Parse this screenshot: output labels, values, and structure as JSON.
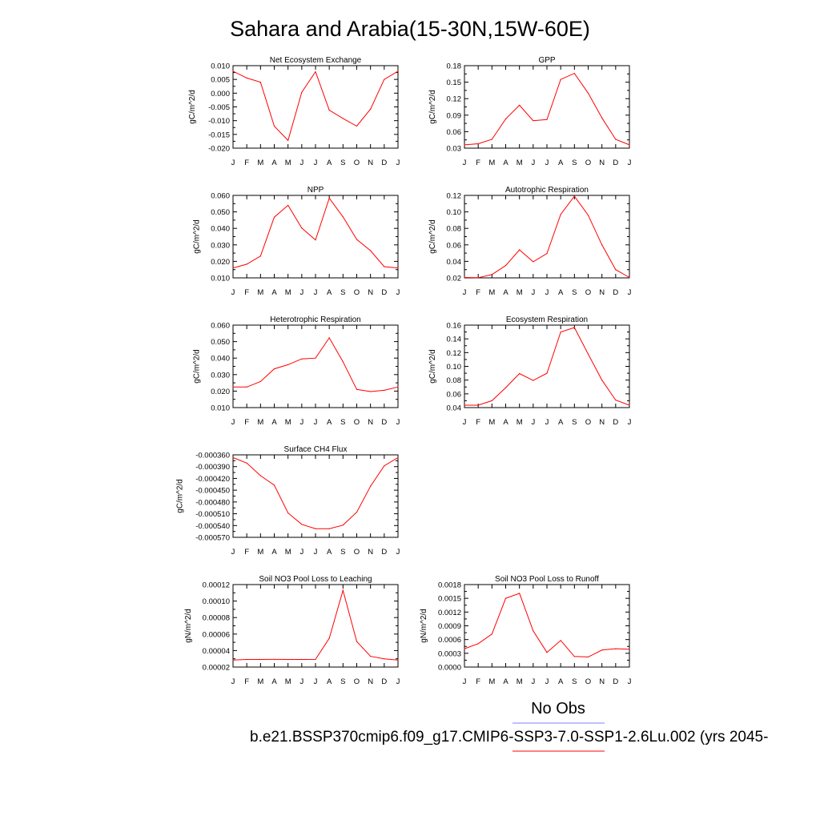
{
  "title": "Sahara and Arabia(15-30N,15W-60E)",
  "legend": {
    "obs_label": "No Obs",
    "obs_color": "#8080ff",
    "model_label": "b.e21.BSSP370cmip6.f09_g17.CMIP6-SSP3-7.0-SSP1-2.6Lu.002 (yrs 2045-",
    "model_color": "#ff0000"
  },
  "line_color": "#ff0000",
  "chart_data": [
    {
      "type": "line",
      "title": "Net Ecosystem Exchange",
      "ylabel": "gC/m^2/d",
      "x": [
        "J",
        "F",
        "M",
        "A",
        "M",
        "J",
        "J",
        "A",
        "S",
        "O",
        "N",
        "D",
        "J"
      ],
      "ylim": [
        -0.02,
        0.01
      ],
      "yticks": [
        "0.010",
        "0.005",
        "0.000",
        "-0.005",
        "-0.010",
        "-0.015",
        "-0.020"
      ],
      "series": [
        {
          "values": [
            0.008,
            0.0055,
            0.004,
            -0.012,
            -0.0172,
            0.0003,
            0.0078,
            -0.0062,
            -0.0092,
            -0.012,
            -0.0058,
            0.005,
            0.008
          ]
        }
      ]
    },
    {
      "type": "line",
      "title": "GPP",
      "ylabel": "gC/m^2/d",
      "x": [
        "J",
        "F",
        "M",
        "A",
        "M",
        "J",
        "J",
        "A",
        "S",
        "O",
        "N",
        "D",
        "J"
      ],
      "ylim": [
        0.03,
        0.18
      ],
      "yticks": [
        "0.18",
        "0.15",
        "0.12",
        "0.09",
        "0.06",
        "0.03"
      ],
      "series": [
        {
          "values": [
            0.036,
            0.038,
            0.046,
            0.083,
            0.108,
            0.08,
            0.082,
            0.155,
            0.166,
            0.13,
            0.085,
            0.046,
            0.036
          ]
        }
      ]
    },
    {
      "type": "line",
      "title": "NPP",
      "ylabel": "gC/m^2/d",
      "x": [
        "J",
        "F",
        "M",
        "A",
        "M",
        "J",
        "J",
        "A",
        "S",
        "O",
        "N",
        "D",
        "J"
      ],
      "ylim": [
        0.01,
        0.06
      ],
      "yticks": [
        "0.060",
        "0.050",
        "0.040",
        "0.030",
        "0.020",
        "0.010"
      ],
      "series": [
        {
          "values": [
            0.016,
            0.0183,
            0.0232,
            0.0468,
            0.054,
            0.0402,
            0.033,
            0.0583,
            0.047,
            0.0333,
            0.0265,
            0.0168,
            0.016
          ]
        }
      ]
    },
    {
      "type": "line",
      "title": "Autotrophic Respiration",
      "ylabel": "gC/m^2/d",
      "x": [
        "J",
        "F",
        "M",
        "A",
        "M",
        "J",
        "J",
        "A",
        "S",
        "O",
        "N",
        "D",
        "J"
      ],
      "ylim": [
        0.02,
        0.12
      ],
      "yticks": [
        "0.12",
        "0.10",
        "0.08",
        "0.06",
        "0.04",
        "0.02"
      ],
      "series": [
        {
          "values": [
            0.0205,
            0.0202,
            0.024,
            0.035,
            0.054,
            0.0395,
            0.0495,
            0.097,
            0.119,
            0.096,
            0.06,
            0.03,
            0.0205
          ]
        }
      ]
    },
    {
      "type": "line",
      "title": "Heterotrophic Respiration",
      "ylabel": "gC/m^2/d",
      "x": [
        "J",
        "F",
        "M",
        "A",
        "M",
        "J",
        "J",
        "A",
        "S",
        "O",
        "N",
        "D",
        "J"
      ],
      "ylim": [
        0.01,
        0.06
      ],
      "yticks": [
        "0.060",
        "0.050",
        "0.040",
        "0.030",
        "0.020",
        "0.010"
      ],
      "series": [
        {
          "values": [
            0.0225,
            0.0225,
            0.0258,
            0.0335,
            0.036,
            0.0395,
            0.04,
            0.0523,
            0.0378,
            0.021,
            0.0197,
            0.0205,
            0.0225
          ]
        }
      ]
    },
    {
      "type": "line",
      "title": "Ecosystem Respiration",
      "ylabel": "gC/m^2/d",
      "x": [
        "J",
        "F",
        "M",
        "A",
        "M",
        "J",
        "J",
        "A",
        "S",
        "O",
        "N",
        "D",
        "J"
      ],
      "ylim": [
        0.04,
        0.16
      ],
      "yticks": [
        "0.16",
        "0.14",
        "0.12",
        "0.10",
        "0.08",
        "0.06",
        "0.04"
      ],
      "series": [
        {
          "values": [
            0.0435,
            0.0435,
            0.05,
            0.069,
            0.0895,
            0.0795,
            0.09,
            0.15,
            0.1565,
            0.118,
            0.08,
            0.051,
            0.0435
          ]
        }
      ]
    },
    {
      "type": "line",
      "title": "Surface CH4 Flux",
      "ylabel": "gC/m^2/d",
      "x": [
        "J",
        "F",
        "M",
        "A",
        "M",
        "J",
        "J",
        "A",
        "S",
        "O",
        "N",
        "D",
        "J"
      ],
      "ylim": [
        -0.00057,
        -0.00036
      ],
      "yticks": [
        "-0.000360",
        "-0.000390",
        "-0.000420",
        "-0.000450",
        "-0.000480",
        "-0.000510",
        "-0.000540",
        "-0.000570"
      ],
      "series": [
        {
          "values": [
            -0.000367,
            -0.000381,
            -0.000413,
            -0.000437,
            -0.000508,
            -0.000537,
            -0.000548,
            -0.000548,
            -0.000539,
            -0.000506,
            -0.00044,
            -0.000388,
            -0.000367
          ]
        }
      ]
    },
    {
      "type": "line",
      "title": "Soil NO3 Pool Loss to Leaching",
      "ylabel": "gN/m^2/d",
      "x": [
        "J",
        "F",
        "M",
        "A",
        "M",
        "J",
        "J",
        "A",
        "S",
        "O",
        "N",
        "D",
        "J"
      ],
      "ylim": [
        2e-05,
        0.00012
      ],
      "yticks": [
        "0.00012",
        "0.00010",
        "0.00008",
        "0.00006",
        "0.00004",
        "0.00002"
      ],
      "series": [
        {
          "values": [
            2.85e-05,
            2.92e-05,
            2.92e-05,
            2.93e-05,
            2.92e-05,
            2.92e-05,
            2.93e-05,
            5.5e-05,
            0.000113,
            5.1e-05,
            3.3e-05,
            3e-05,
            2.85e-05
          ]
        }
      ]
    },
    {
      "type": "line",
      "title": "Soil NO3 Pool Loss to Runoff",
      "ylabel": "gN/m^2/d",
      "x": [
        "J",
        "F",
        "M",
        "A",
        "M",
        "J",
        "J",
        "A",
        "S",
        "O",
        "N",
        "D",
        "J"
      ],
      "ylim": [
        0.0,
        0.0018
      ],
      "yticks": [
        "0.0018",
        "0.0015",
        "0.0012",
        "0.0009",
        "0.0006",
        "0.0003",
        "0.0000"
      ],
      "series": [
        {
          "values": [
            0.0004,
            0.00051,
            0.00072,
            0.0015,
            0.00161,
            0.00079,
            0.00032,
            0.00058,
            0.00023,
            0.00022,
            0.00037,
            0.0004,
            0.00039
          ]
        }
      ]
    }
  ]
}
